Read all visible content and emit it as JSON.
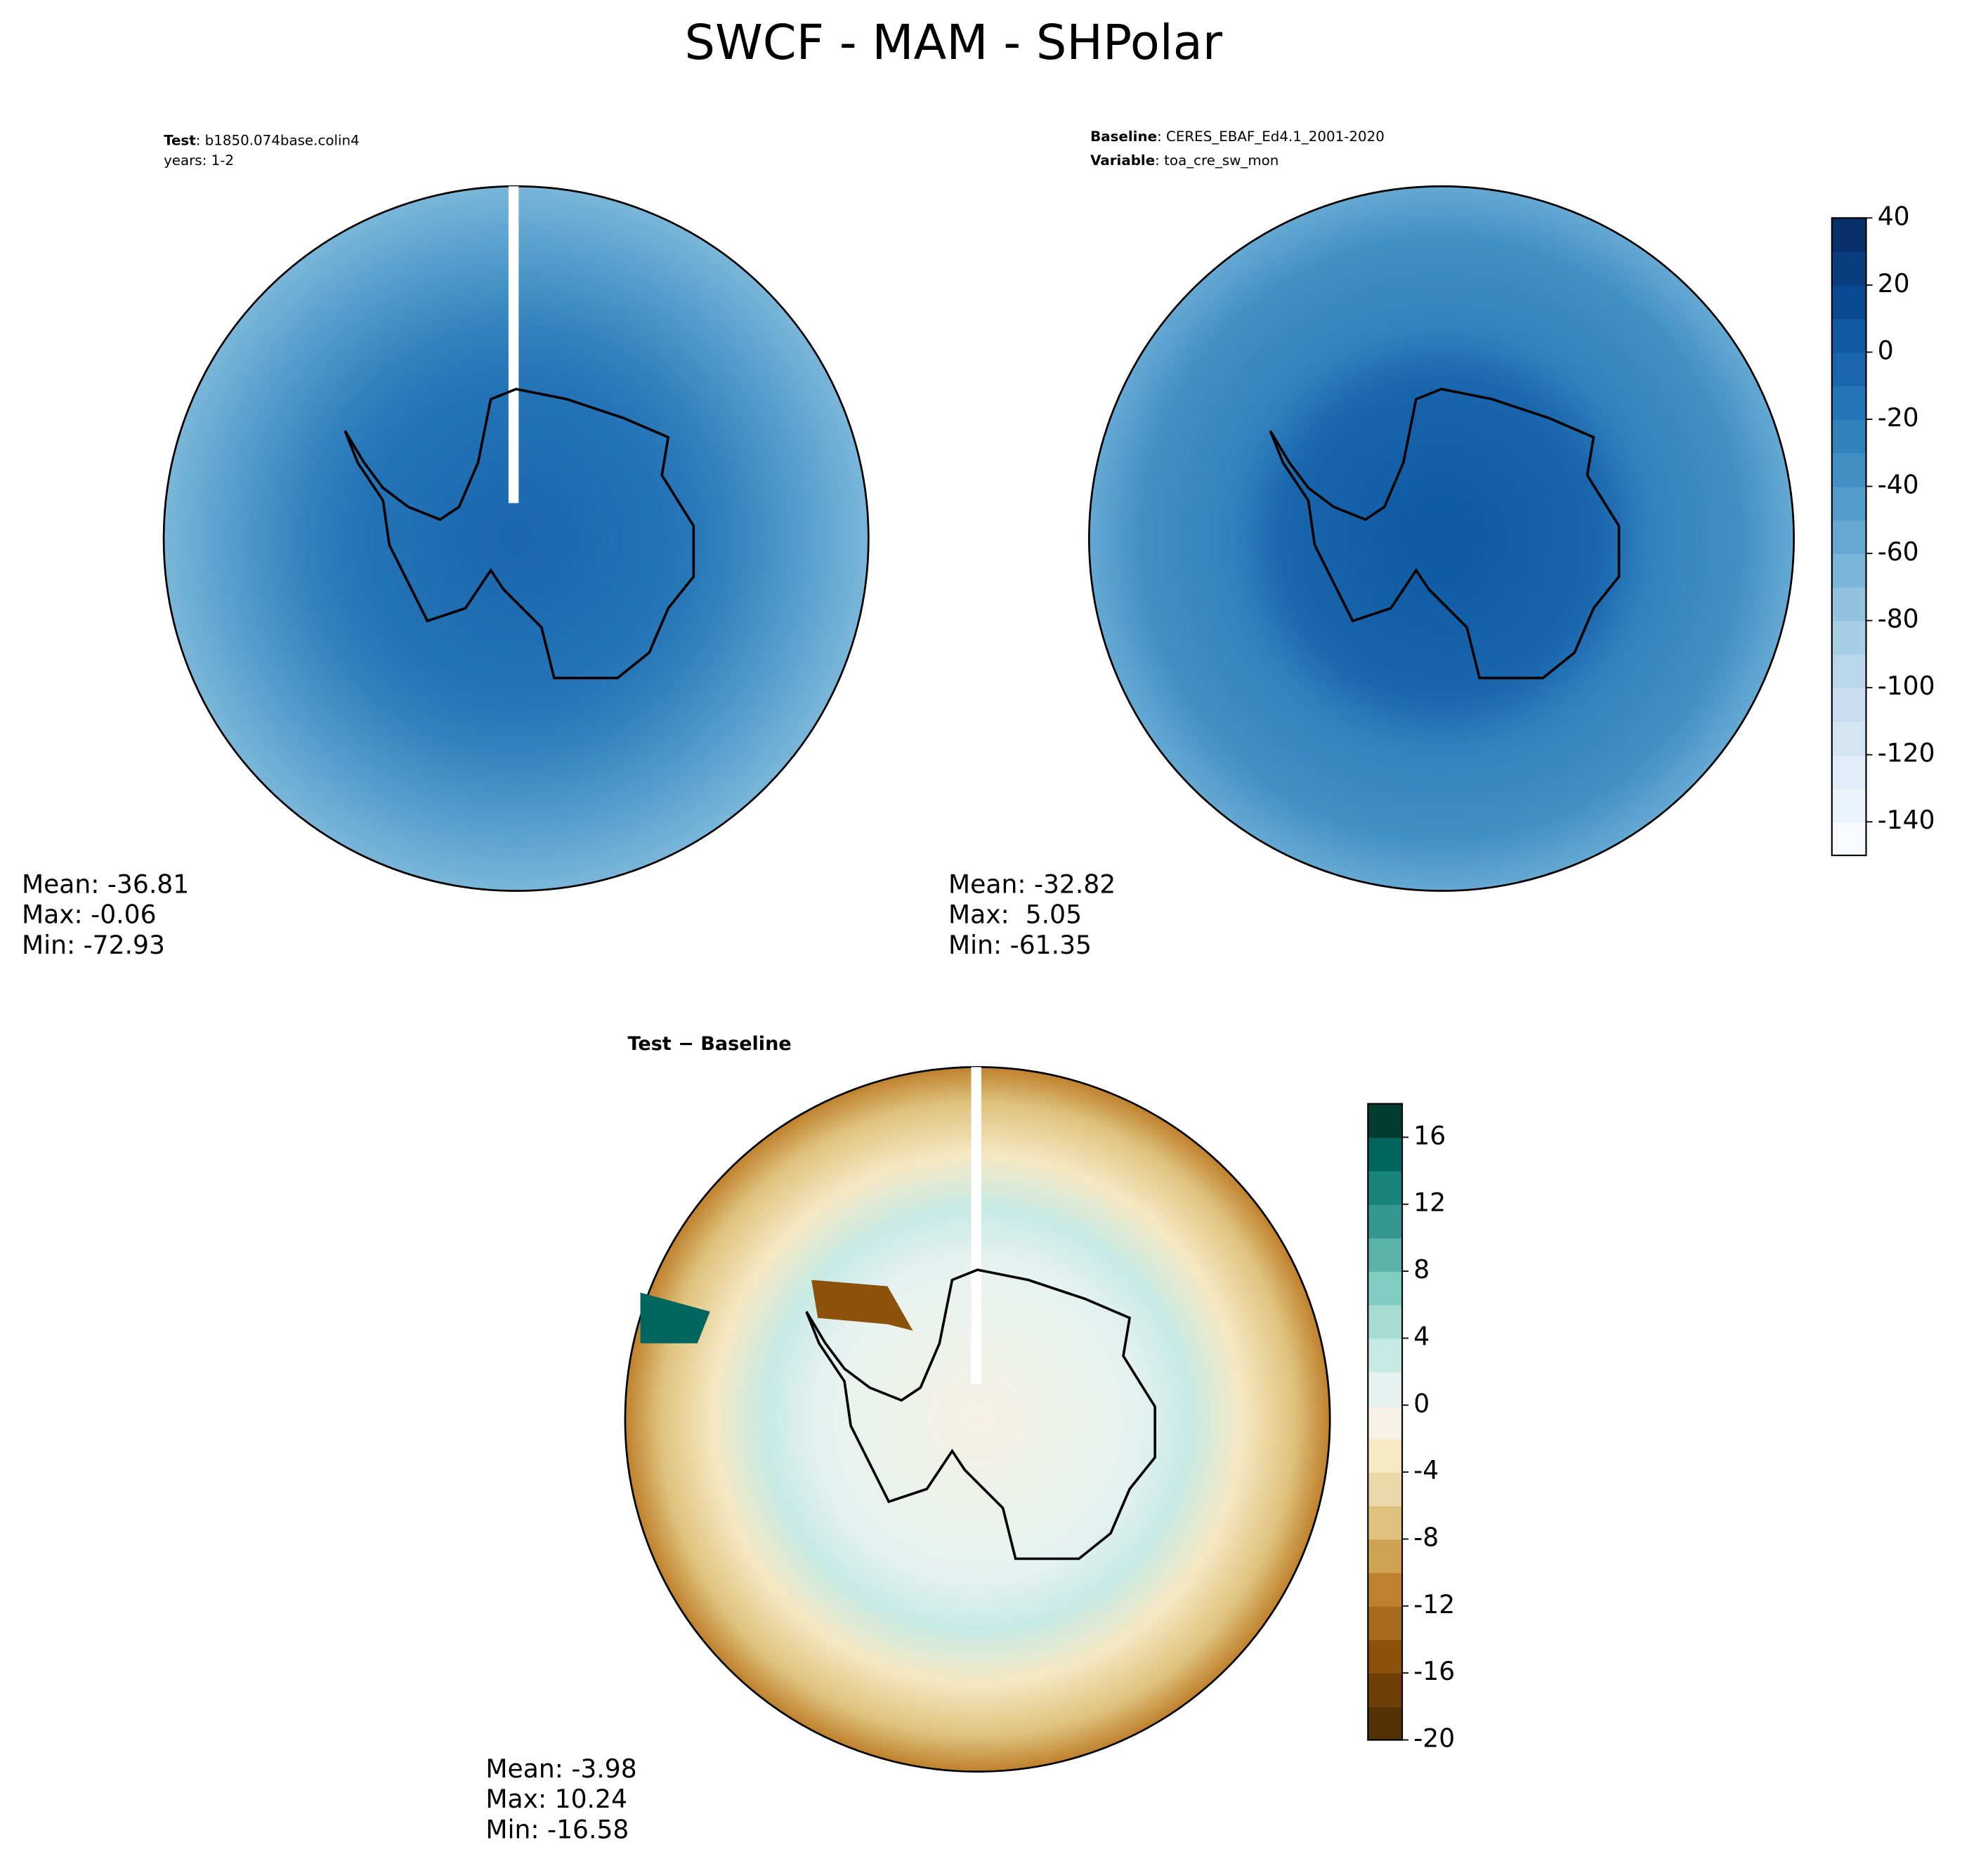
{
  "chart_data": {
    "type": "polar-map",
    "title": "SWCF - MAM - SHPolar",
    "panels": [
      {
        "header": [
          {
            "label": "Test",
            "text": ": b1850.074base.colin4"
          },
          {
            "text": "years: 1-2"
          }
        ],
        "stats": [
          "Mean: -36.81",
          "Max: -0.06",
          "Min: -72.93"
        ]
      },
      {
        "header": [
          {
            "label": "Baseline",
            "text": ": CERES_EBAF_Ed4.1_2001-2020"
          },
          {
            "label": "Variable",
            "text": ": toa_cre_sw_mon"
          }
        ],
        "stats": [
          "Mean: -32.82",
          "Max:  5.05",
          "Min: -61.35"
        ]
      },
      {
        "header": [
          {
            "label": "Test − Baseline"
          }
        ],
        "stats": [
          "Mean: -3.98",
          "Max: 10.24",
          "Min: -16.58"
        ]
      }
    ],
    "colorbars": [
      {
        "lim": [
          -150,
          40
        ],
        "ticks": [
          40,
          20,
          0,
          -20,
          -40,
          -60,
          -80,
          -100,
          -120,
          -140
        ],
        "colors": [
          "#f7fbff",
          "#ebf3fb",
          "#e0ecf8",
          "#d3e4f3",
          "#c8ddf0",
          "#b9d6ea",
          "#a6cee4",
          "#91c3de",
          "#7ab6d9",
          "#65a9d3",
          "#529dcc",
          "#4190c5",
          "#3282be",
          "#2474b7",
          "#1966ad",
          "#0e59a2",
          "#084b93",
          "#083d7f",
          "#08306b"
        ]
      },
      {
        "lim": [
          -20,
          18
        ],
        "ticks": [
          16,
          12,
          8,
          4,
          0,
          -4,
          -8,
          -12,
          -16,
          -20
        ],
        "colors": [
          "#543005",
          "#6e3f07",
          "#8c510a",
          "#a86a1c",
          "#bf812d",
          "#cfa155",
          "#dfc27d",
          "#ebd9a9",
          "#f6e8c3",
          "#f5f1e4",
          "#e6f2f0",
          "#c7eae5",
          "#a8ddd4",
          "#80cdc1",
          "#5ab3a8",
          "#35978f",
          "#19847b",
          "#01665e",
          "#003c30"
        ]
      }
    ]
  }
}
